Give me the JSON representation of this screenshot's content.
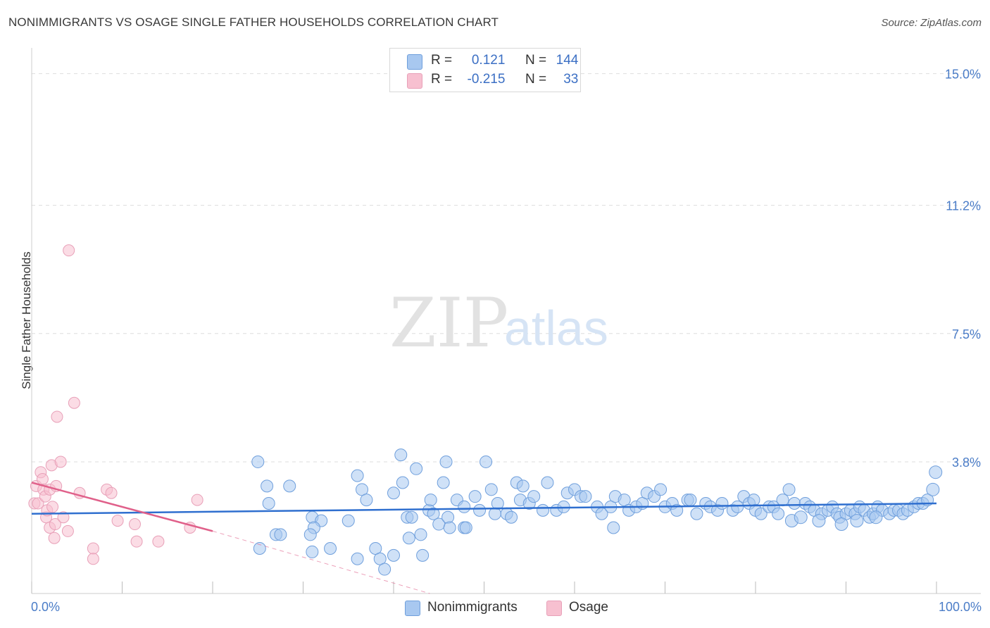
{
  "chart_data": {
    "type": "scatter",
    "title": "NONIMMIGRANTS VS OSAGE SINGLE FATHER HOUSEHOLDS CORRELATION CHART",
    "source": "Source: ZipAtlas.com",
    "ylabel": "Single Father Households",
    "xlabel": "",
    "xlim": [
      0,
      100
    ],
    "ylim": [
      0,
      15.5
    ],
    "y_ticks": [
      {
        "value": 3.8,
        "label": "3.8%"
      },
      {
        "value": 7.5,
        "label": "7.5%"
      },
      {
        "value": 11.2,
        "label": "11.2%"
      },
      {
        "value": 15.0,
        "label": "15.0%"
      }
    ],
    "x_tick_labels": {
      "left": "0.0%",
      "right": "100.0%"
    },
    "watermark": {
      "zip": "ZIP",
      "atlas": "atlas"
    },
    "colors": {
      "nonimmigrants_fill": "#a8c8f0",
      "nonimmigrants_stroke": "#6f9fdc",
      "nonimmigrants_line": "#2f6fcf",
      "osage_fill": "#f7c0d0",
      "osage_stroke": "#e8a0b8",
      "osage_line": "#e0608a",
      "tick_text": "#4a7cc7"
    },
    "legend": [
      {
        "name": "Nonimmigrants",
        "r_label": "R =",
        "r_value": "0.121",
        "n_label": "N =",
        "n_value": "144"
      },
      {
        "name": "Osage",
        "r_label": "R =",
        "r_value": "-0.215",
        "n_label": "N =",
        "n_value": "33"
      }
    ],
    "series": [
      {
        "name": "Nonimmigrants",
        "trend": {
          "x0": 0,
          "y0": 2.3,
          "x1": 100,
          "y1": 2.6
        },
        "points": [
          [
            25,
            3.8
          ],
          [
            26,
            3.1
          ],
          [
            26.2,
            2.6
          ],
          [
            28.5,
            3.1
          ],
          [
            31,
            2.2
          ],
          [
            32,
            2.1
          ],
          [
            31.2,
            1.9
          ],
          [
            35,
            2.1
          ],
          [
            25.2,
            1.3
          ],
          [
            27,
            1.7
          ],
          [
            27.5,
            1.7
          ],
          [
            30.8,
            1.7
          ],
          [
            31,
            1.2
          ],
          [
            33,
            1.3
          ],
          [
            36,
            1.0
          ],
          [
            38,
            1.3
          ],
          [
            38.5,
            1.0
          ],
          [
            39,
            0.7
          ],
          [
            40,
            1.1
          ],
          [
            36.5,
            3.0
          ],
          [
            36,
            3.4
          ],
          [
            37,
            2.7
          ],
          [
            40,
            2.9
          ],
          [
            40.8,
            4.0
          ],
          [
            41,
            3.2
          ],
          [
            41.5,
            2.2
          ],
          [
            41.7,
            1.6
          ],
          [
            42.5,
            3.6
          ],
          [
            42,
            2.2
          ],
          [
            43,
            1.7
          ],
          [
            43.2,
            1.1
          ],
          [
            43.9,
            2.4
          ],
          [
            44.1,
            2.7
          ],
          [
            44.4,
            2.3
          ],
          [
            45,
            2.0
          ],
          [
            45.5,
            3.2
          ],
          [
            46,
            2.2
          ],
          [
            46.2,
            1.9
          ],
          [
            45.8,
            3.8
          ],
          [
            47,
            2.7
          ],
          [
            47.8,
            1.9
          ],
          [
            48,
            1.9
          ],
          [
            47.8,
            2.5
          ],
          [
            49,
            2.8
          ],
          [
            49.5,
            2.4
          ],
          [
            50.2,
            3.8
          ],
          [
            50.8,
            3.0
          ],
          [
            51.5,
            2.6
          ],
          [
            51.2,
            2.3
          ],
          [
            52.5,
            2.3
          ],
          [
            53,
            2.2
          ],
          [
            53.6,
            3.2
          ],
          [
            54,
            2.7
          ],
          [
            54.3,
            3.1
          ],
          [
            55,
            2.6
          ],
          [
            55.5,
            2.8
          ],
          [
            56.5,
            2.4
          ],
          [
            57,
            3.2
          ],
          [
            58,
            2.4
          ],
          [
            58.8,
            2.5
          ],
          [
            59.2,
            2.9
          ],
          [
            60,
            3.0
          ],
          [
            60.7,
            2.8
          ],
          [
            61.2,
            2.8
          ],
          [
            62.5,
            2.5
          ],
          [
            63,
            2.3
          ],
          [
            64,
            2.5
          ],
          [
            64.5,
            2.8
          ],
          [
            64.3,
            1.9
          ],
          [
            65.5,
            2.7
          ],
          [
            66,
            2.4
          ],
          [
            66.8,
            2.5
          ],
          [
            67.5,
            2.6
          ],
          [
            68,
            2.9
          ],
          [
            68.8,
            2.8
          ],
          [
            69.5,
            3.0
          ],
          [
            70,
            2.5
          ],
          [
            70.8,
            2.6
          ],
          [
            71.3,
            2.4
          ],
          [
            72.5,
            2.7
          ],
          [
            72.8,
            2.7
          ],
          [
            73.5,
            2.3
          ],
          [
            74.5,
            2.6
          ],
          [
            75,
            2.5
          ],
          [
            75.8,
            2.4
          ],
          [
            76.3,
            2.6
          ],
          [
            77.5,
            2.4
          ],
          [
            78,
            2.5
          ],
          [
            78.7,
            2.8
          ],
          [
            79.3,
            2.6
          ],
          [
            79.8,
            2.7
          ],
          [
            80,
            2.4
          ],
          [
            80.6,
            2.3
          ],
          [
            81.5,
            2.5
          ],
          [
            82,
            2.5
          ],
          [
            82.5,
            2.3
          ],
          [
            83,
            2.7
          ],
          [
            83.7,
            3.0
          ],
          [
            84.3,
            2.6
          ],
          [
            85.5,
            2.6
          ],
          [
            86,
            2.5
          ],
          [
            86.5,
            2.4
          ],
          [
            87.3,
            2.3
          ],
          [
            88,
            2.4
          ],
          [
            88.5,
            2.5
          ],
          [
            89,
            2.3
          ],
          [
            89.3,
            2.2
          ],
          [
            90,
            2.3
          ],
          [
            90.5,
            2.4
          ],
          [
            91,
            2.3
          ],
          [
            91.5,
            2.5
          ],
          [
            92,
            2.4
          ],
          [
            92.6,
            2.2
          ],
          [
            93,
            2.3
          ],
          [
            93.5,
            2.5
          ],
          [
            94,
            2.4
          ],
          [
            94.8,
            2.3
          ],
          [
            95.3,
            2.4
          ],
          [
            95.8,
            2.4
          ],
          [
            96.3,
            2.3
          ],
          [
            96.8,
            2.4
          ],
          [
            97.5,
            2.5
          ],
          [
            98,
            2.6
          ],
          [
            98.5,
            2.6
          ],
          [
            99,
            2.7
          ],
          [
            99.6,
            3.0
          ],
          [
            99.9,
            3.5
          ],
          [
            84,
            2.1
          ],
          [
            85,
            2.2
          ],
          [
            87,
            2.1
          ],
          [
            89.5,
            2.0
          ],
          [
            91.2,
            2.1
          ],
          [
            93.3,
            2.2
          ]
        ]
      },
      {
        "name": "Osage",
        "trend": {
          "x0": 0,
          "y0": 3.2,
          "x1": 20,
          "y1": 1.8
        },
        "trend_dashed": {
          "x0": 20,
          "y0": 1.8,
          "x1": 44,
          "y1": 0.0
        },
        "points": [
          [
            0.3,
            2.6
          ],
          [
            0.5,
            3.1
          ],
          [
            0.7,
            2.6
          ],
          [
            1,
            3.5
          ],
          [
            1.2,
            3.3
          ],
          [
            1.3,
            3.0
          ],
          [
            1.5,
            2.8
          ],
          [
            1.6,
            2.2
          ],
          [
            1.7,
            2.4
          ],
          [
            2,
            1.9
          ],
          [
            2,
            3.0
          ],
          [
            2.2,
            3.7
          ],
          [
            2.3,
            2.5
          ],
          [
            2.5,
            1.6
          ],
          [
            2.6,
            2.0
          ],
          [
            2.7,
            3.1
          ],
          [
            2.8,
            5.1
          ],
          [
            3.2,
            3.8
          ],
          [
            3.5,
            2.2
          ],
          [
            4,
            1.8
          ],
          [
            4.1,
            9.9
          ],
          [
            4.7,
            5.5
          ],
          [
            5.3,
            2.9
          ],
          [
            6.8,
            1.3
          ],
          [
            6.8,
            1.0
          ],
          [
            8.3,
            3.0
          ],
          [
            8.8,
            2.9
          ],
          [
            9.5,
            2.1
          ],
          [
            11.4,
            2.0
          ],
          [
            11.6,
            1.5
          ],
          [
            14,
            1.5
          ],
          [
            17.5,
            1.9
          ],
          [
            18.3,
            2.7
          ]
        ]
      }
    ]
  }
}
